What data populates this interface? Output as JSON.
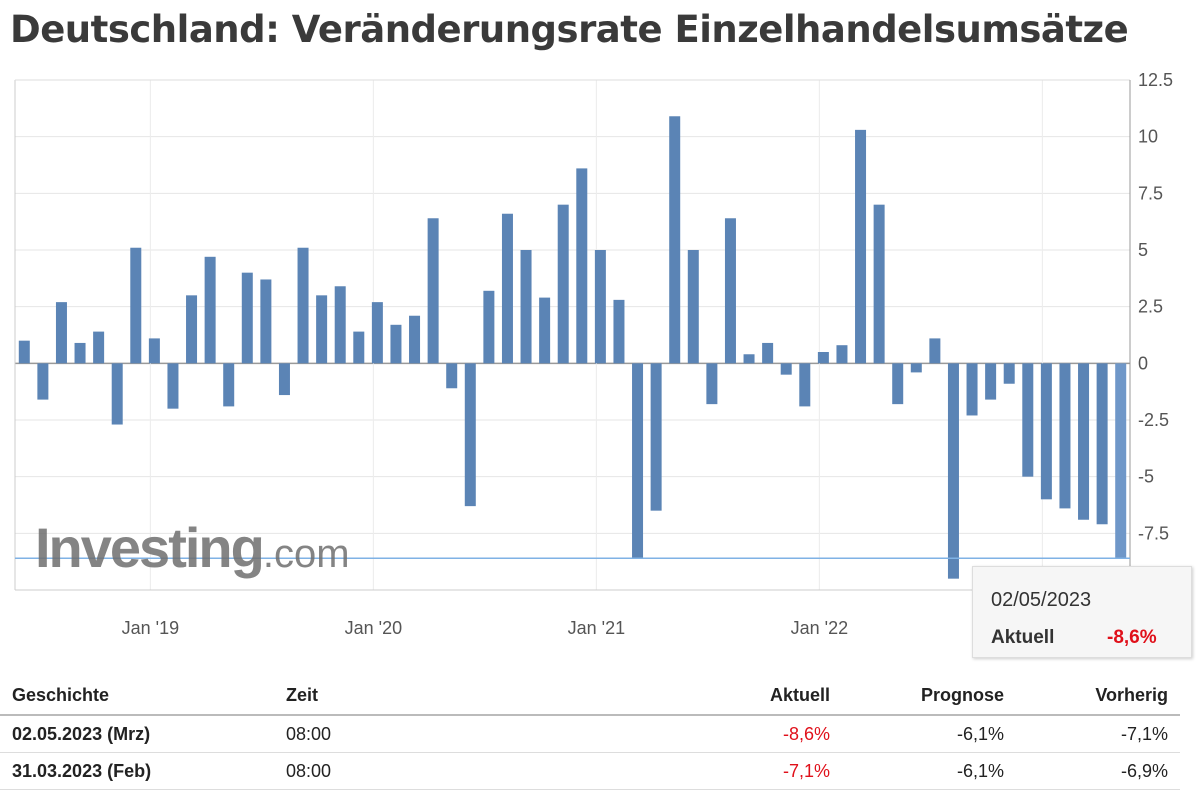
{
  "title": "Deutschland: Veränderungsrate Einzelhandelsumsätze",
  "watermark": "Investing.com",
  "chart_data": {
    "type": "bar",
    "title": "Deutschland: Veränderungsrate Einzelhandelsumsätze",
    "values": [
      1.0,
      -1.6,
      2.7,
      0.9,
      1.4,
      -2.7,
      5.1,
      1.1,
      -2.0,
      3.0,
      4.7,
      -1.9,
      4.0,
      3.7,
      -1.4,
      5.1,
      3.0,
      3.4,
      1.4,
      2.7,
      1.7,
      2.1,
      6.4,
      -1.1,
      -6.3,
      3.2,
      6.6,
      5.0,
      2.9,
      7.0,
      8.6,
      5.0,
      2.8,
      -8.6,
      -6.5,
      10.9,
      5.0,
      -1.8,
      6.4,
      0.4,
      0.9,
      -0.5,
      -1.9,
      0.5,
      0.8,
      10.3,
      7.0,
      -1.8,
      -0.4,
      1.1,
      -9.5,
      -2.3,
      -1.6,
      -0.9,
      -5.0,
      -6.0,
      -6.4,
      -6.9,
      -7.1,
      -8.6
    ],
    "x_tick_labels": [
      {
        "label": "Jan '19",
        "bar_index": 7
      },
      {
        "label": "Jan '20",
        "bar_index": 19
      },
      {
        "label": "Jan '21",
        "bar_index": 31
      },
      {
        "label": "Jan '22",
        "bar_index": 43
      }
    ],
    "y_ticks": [
      12.5,
      10,
      7.5,
      5,
      2.5,
      0,
      -2.5,
      -5,
      -7.5
    ],
    "ylim": [
      -10,
      12.5
    ],
    "y_axis_side": "right",
    "grid": true,
    "bar_color": "#5b84b5",
    "crosshair_value": -8.6,
    "xlabel": "",
    "ylabel": ""
  },
  "tooltip": {
    "date": "02/05/2023",
    "label": "Aktuell",
    "value": "-8,6%"
  },
  "table": {
    "headers": [
      "Geschichte",
      "Zeit",
      "Aktuell",
      "Prognose",
      "Vorherig"
    ],
    "rows": [
      [
        "02.05.2023 (Mrz)",
        "08:00",
        "-8,6%",
        "-6,1%",
        "-7,1%"
      ],
      [
        "31.03.2023 (Feb)",
        "08:00",
        "-7,1%",
        "-6,1%",
        "-6,9%"
      ]
    ]
  }
}
